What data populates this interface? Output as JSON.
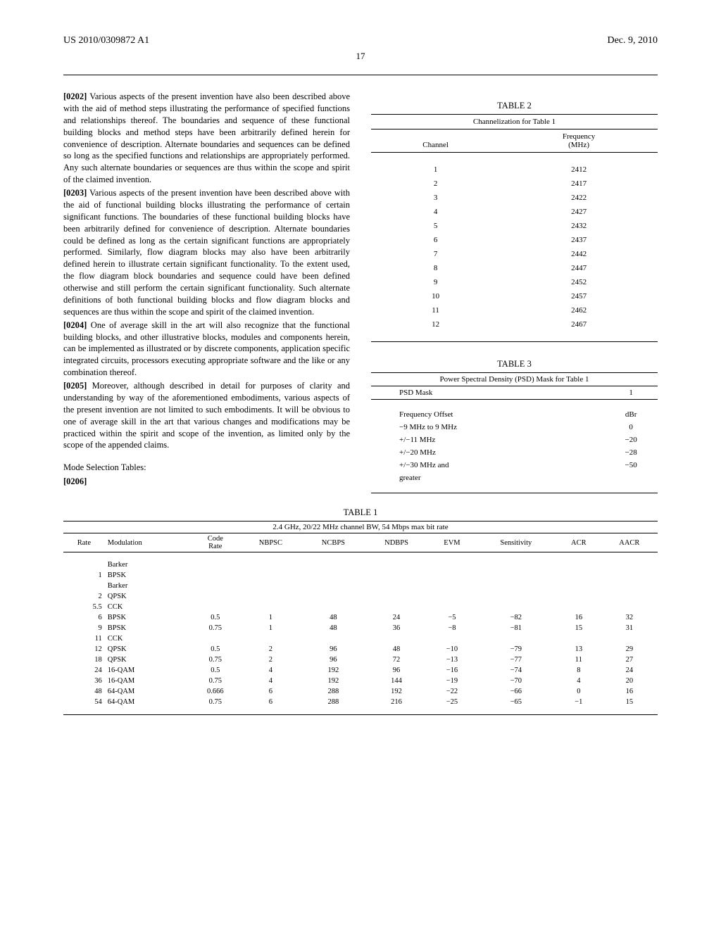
{
  "header": {
    "pub_number": "US 2010/0309872 A1",
    "date": "Dec. 9, 2010",
    "page": "17"
  },
  "paragraphs": {
    "p0202_num": "[0202]",
    "p0202_text": " Various aspects of the present invention have also been described above with the aid of method steps illustrating the performance of specified functions and relationships thereof. The boundaries and sequence of these functional building blocks and method steps have been arbitrarily defined herein for convenience of description. Alternate boundaries and sequences can be defined so long as the specified functions and relationships are appropriately performed. Any such alternate boundaries or sequences are thus within the scope and spirit of the claimed invention.",
    "p0203_num": "[0203]",
    "p0203_text": " Various aspects of the present invention have been described above with the aid of functional building blocks illustrating the performance of certain significant functions. The boundaries of these functional building blocks have been arbitrarily defined for convenience of description. Alternate boundaries could be defined as long as the certain significant functions are appropriately performed. Similarly, flow diagram blocks may also have been arbitrarily defined herein to illustrate certain significant functionality. To the extent used, the flow diagram block boundaries and sequence could have been defined otherwise and still perform the certain significant functionality. Such alternate definitions of both functional building blocks and flow diagram blocks and sequences are thus within the scope and spirit of the claimed invention.",
    "p0204_num": "[0204]",
    "p0204_text": " One of average skill in the art will also recognize that the functional building blocks, and other illustrative blocks, modules and components herein, can be implemented as illustrated or by discrete components, application specific integrated circuits, processors executing appropriate software and the like or any combination thereof.",
    "p0205_num": "[0205]",
    "p0205_text": " Moreover, although described in detail for purposes of clarity and understanding by way of the aforementioned embodiments, various aspects of the present invention are not limited to such embodiments. It will be obvious to one of average skill in the art that various changes and modifications may be practiced within the spirit and scope of the invention, as limited only by the scope of the appended claims.",
    "mode_sel": "Mode Selection Tables:",
    "p0206_num": "[0206]"
  },
  "table1": {
    "title": "TABLE 1",
    "caption": "2.4 GHz, 20/22 MHz channel BW, 54 Mbps max bit rate",
    "columns": [
      "Rate",
      "Modulation",
      "Code Rate",
      "NBPSC",
      "NCBPS",
      "NDBPS",
      "EVM",
      "Sensitivity",
      "ACR",
      "AACR"
    ],
    "rows": [
      [
        "",
        "Barker",
        "",
        "",
        "",
        "",
        "",
        "",
        "",
        ""
      ],
      [
        "1",
        "BPSK",
        "",
        "",
        "",
        "",
        "",
        "",
        "",
        ""
      ],
      [
        "",
        "Barker",
        "",
        "",
        "",
        "",
        "",
        "",
        "",
        ""
      ],
      [
        "2",
        "QPSK",
        "",
        "",
        "",
        "",
        "",
        "",
        "",
        ""
      ],
      [
        "5.5",
        "CCK",
        "",
        "",
        "",
        "",
        "",
        "",
        "",
        ""
      ],
      [
        "6",
        "BPSK",
        "0.5",
        "1",
        "48",
        "24",
        "−5",
        "−82",
        "16",
        "32"
      ],
      [
        "9",
        "BPSK",
        "0.75",
        "1",
        "48",
        "36",
        "−8",
        "−81",
        "15",
        "31"
      ],
      [
        "11",
        "CCK",
        "",
        "",
        "",
        "",
        "",
        "",
        "",
        ""
      ],
      [
        "12",
        "QPSK",
        "0.5",
        "2",
        "96",
        "48",
        "−10",
        "−79",
        "13",
        "29"
      ],
      [
        "18",
        "QPSK",
        "0.75",
        "2",
        "96",
        "72",
        "−13",
        "−77",
        "11",
        "27"
      ],
      [
        "24",
        "16-QAM",
        "0.5",
        "4",
        "192",
        "96",
        "−16",
        "−74",
        "8",
        "24"
      ],
      [
        "36",
        "16-QAM",
        "0.75",
        "4",
        "192",
        "144",
        "−19",
        "−70",
        "4",
        "20"
      ],
      [
        "48",
        "64-QAM",
        "0.666",
        "6",
        "288",
        "192",
        "−22",
        "−66",
        "0",
        "16"
      ],
      [
        "54",
        "64-QAM",
        "0.75",
        "6",
        "288",
        "216",
        "−25",
        "−65",
        "−1",
        "15"
      ]
    ]
  },
  "table2": {
    "title": "TABLE 2",
    "caption": "Channelization for Table 1",
    "col_channel": "Channel",
    "col_freq_l1": "Frequency",
    "col_freq_l2": "(MHz)",
    "rows": [
      [
        "1",
        "2412"
      ],
      [
        "2",
        "2417"
      ],
      [
        "3",
        "2422"
      ],
      [
        "4",
        "2427"
      ],
      [
        "5",
        "2432"
      ],
      [
        "6",
        "2437"
      ],
      [
        "7",
        "2442"
      ],
      [
        "8",
        "2447"
      ],
      [
        "9",
        "2452"
      ],
      [
        "10",
        "2457"
      ],
      [
        "11",
        "2462"
      ],
      [
        "12",
        "2467"
      ]
    ]
  },
  "table3": {
    "title": "TABLE 3",
    "caption": "Power Spectral Density (PSD) Mask for Table 1",
    "col_mask": "PSD Mask",
    "col_val": "1",
    "rows": [
      [
        "Frequency Offset",
        "dBr"
      ],
      [
        "−9 MHz to 9 MHz",
        "0"
      ],
      [
        "+/−11 MHz",
        "−20"
      ],
      [
        "+/−20 MHz",
        "−28"
      ],
      [
        "+/−30 MHz and",
        "−50"
      ],
      [
        "greater",
        ""
      ]
    ]
  }
}
